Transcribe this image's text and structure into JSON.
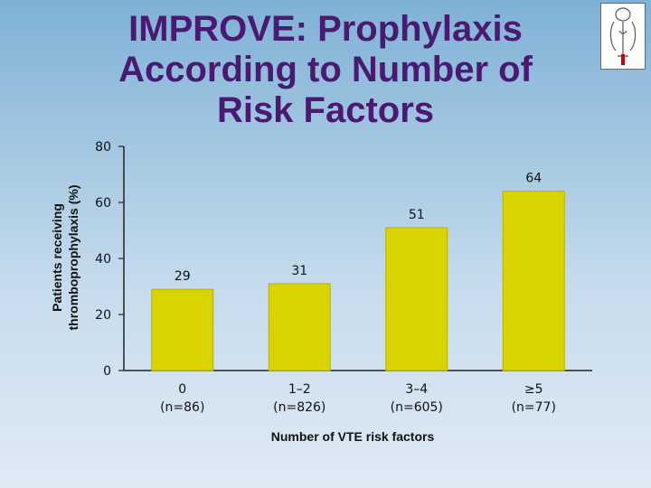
{
  "title": "IMPROVE: Prophylaxis According to Number of Risk Factors",
  "colors": {
    "bar": "#d9d400",
    "bar_shade": "#b8b200",
    "title": "#4a1a72"
  },
  "chart_data": {
    "type": "bar",
    "categories": [
      "0 (n=86)",
      "1–2 (n=826)",
      "3–4 (n=605)",
      "≥5 (n=77)"
    ],
    "category_lines": [
      [
        "0",
        "(n=86)"
      ],
      [
        "1–2",
        "(n=826)"
      ],
      [
        "3–4",
        "(n=605)"
      ],
      [
        "≥5",
        "(n=77)"
      ]
    ],
    "values": [
      29,
      31,
      51,
      64
    ],
    "data_labels": [
      "29",
      "31",
      "51",
      "64"
    ],
    "ylabel_lines": [
      "Patients receiving",
      "thromboprophylaxis (%)"
    ],
    "xlabel": "Number of VTE risk factors",
    "ylim": [
      0,
      80
    ],
    "yticks": [
      0,
      20,
      40,
      60,
      80
    ],
    "grid": false,
    "legend": "none"
  }
}
